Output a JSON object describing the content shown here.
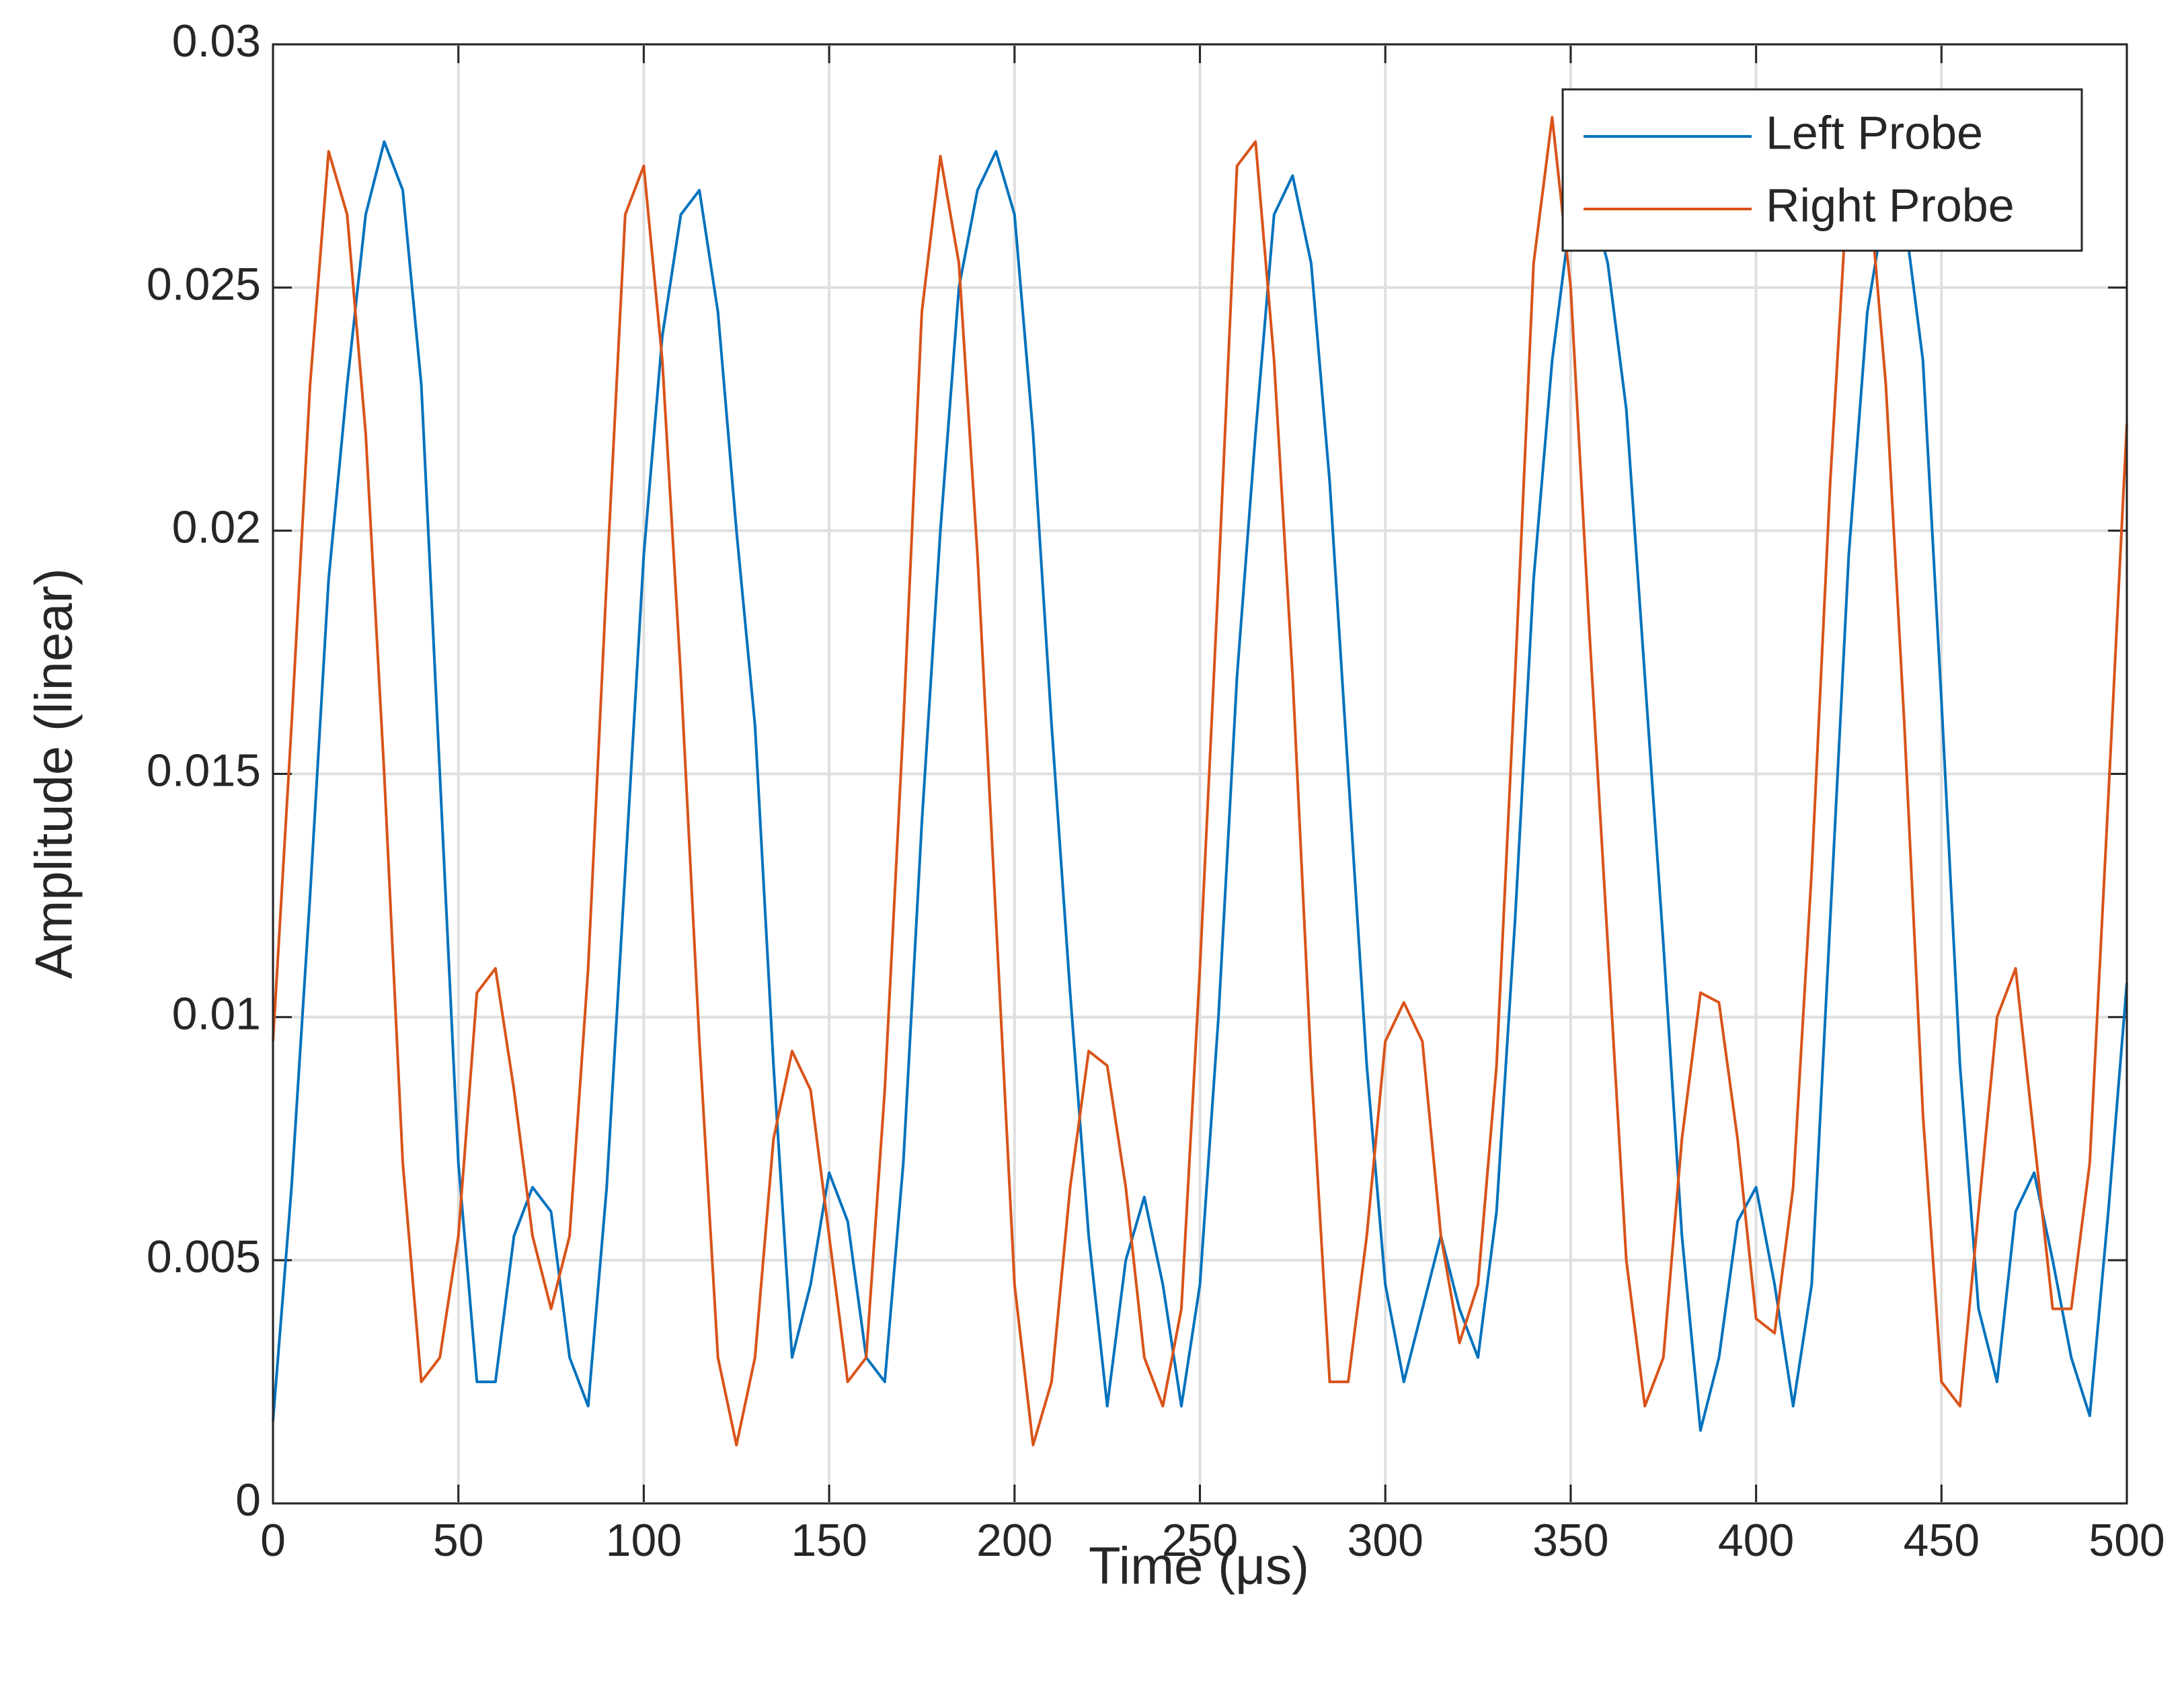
{
  "chart_data": {
    "type": "line",
    "xlabel": "Time (μs)",
    "ylabel": "Amplitude (linear)",
    "xlim": [
      0,
      500
    ],
    "ylim": [
      0,
      0.03
    ],
    "xticks": [
      0,
      50,
      100,
      150,
      200,
      250,
      300,
      350,
      400,
      450,
      500
    ],
    "yticks": [
      0,
      0.005,
      0.01,
      0.015,
      0.02,
      0.025,
      0.03
    ],
    "grid": true,
    "legend": "northeast",
    "x": [
      0,
      5,
      10,
      15,
      20,
      25,
      30,
      35,
      40,
      45,
      50,
      55,
      60,
      65,
      70,
      75,
      80,
      85,
      90,
      95,
      100,
      105,
      110,
      115,
      120,
      125,
      130,
      135,
      140,
      145,
      150,
      155,
      160,
      165,
      170,
      175,
      180,
      185,
      190,
      195,
      200,
      205,
      210,
      215,
      220,
      225,
      230,
      235,
      240,
      245,
      250,
      255,
      260,
      265,
      270,
      275,
      280,
      285,
      290,
      295,
      300,
      305,
      310,
      315,
      320,
      325,
      330,
      335,
      340,
      345,
      350,
      355,
      360,
      365,
      370,
      375,
      380,
      385,
      390,
      395,
      400,
      405,
      410,
      415,
      420,
      425,
      430,
      435,
      440,
      445,
      450,
      455,
      460,
      465,
      470,
      475,
      480,
      485,
      490,
      495,
      500
    ],
    "series": [
      {
        "name": "Left Probe",
        "color": "#0072bd",
        "values": [
          0.0017,
          0.0065,
          0.0125,
          0.019,
          0.023,
          0.0265,
          0.028,
          0.027,
          0.023,
          0.015,
          0.007,
          0.0025,
          0.0025,
          0.0055,
          0.0065,
          0.006,
          0.003,
          0.002,
          0.0065,
          0.013,
          0.0195,
          0.024,
          0.0265,
          0.027,
          0.0245,
          0.02,
          0.016,
          0.009,
          0.003,
          0.0045,
          0.0068,
          0.0058,
          0.003,
          0.0025,
          0.007,
          0.014,
          0.02,
          0.025,
          0.027,
          0.0278,
          0.0265,
          0.022,
          0.016,
          0.0105,
          0.0055,
          0.002,
          0.005,
          0.0063,
          0.0045,
          0.002,
          0.0045,
          0.01,
          0.017,
          0.022,
          0.0265,
          0.0273,
          0.0255,
          0.021,
          0.015,
          0.009,
          0.0045,
          0.0025,
          0.004,
          0.0055,
          0.004,
          0.003,
          0.006,
          0.012,
          0.019,
          0.0235,
          0.0265,
          0.027,
          0.0255,
          0.0225,
          0.017,
          0.0115,
          0.0055,
          0.0015,
          0.003,
          0.0058,
          0.0065,
          0.0045,
          0.002,
          0.0045,
          0.012,
          0.0195,
          0.0245,
          0.0268,
          0.0265,
          0.0235,
          0.0165,
          0.009,
          0.004,
          0.0025,
          0.006,
          0.0068,
          0.005,
          0.003,
          0.0018,
          0.006,
          0.0107
        ]
      },
      {
        "name": "Right Probe",
        "color": "#d95319",
        "values": [
          0.0095,
          0.016,
          0.023,
          0.0278,
          0.0265,
          0.022,
          0.015,
          0.007,
          0.0025,
          0.003,
          0.0055,
          0.0105,
          0.011,
          0.0085,
          0.0055,
          0.004,
          0.0055,
          0.011,
          0.019,
          0.0265,
          0.0275,
          0.0235,
          0.017,
          0.0095,
          0.003,
          0.0012,
          0.003,
          0.0075,
          0.0093,
          0.0085,
          0.0055,
          0.0025,
          0.003,
          0.0085,
          0.016,
          0.0245,
          0.0277,
          0.0255,
          0.0195,
          0.012,
          0.0045,
          0.0012,
          0.0025,
          0.0065,
          0.0093,
          0.009,
          0.0065,
          0.003,
          0.002,
          0.004,
          0.011,
          0.019,
          0.0275,
          0.028,
          0.0235,
          0.017,
          0.009,
          0.0025,
          0.0025,
          0.0055,
          0.0095,
          0.0103,
          0.0095,
          0.0055,
          0.0033,
          0.0045,
          0.009,
          0.017,
          0.0255,
          0.0285,
          0.025,
          0.018,
          0.0115,
          0.005,
          0.002,
          0.003,
          0.0075,
          0.0105,
          0.0103,
          0.0075,
          0.0038,
          0.0035,
          0.0065,
          0.013,
          0.021,
          0.0275,
          0.0275,
          0.023,
          0.016,
          0.008,
          0.0025,
          0.002,
          0.006,
          0.01,
          0.011,
          0.0075,
          0.004,
          0.004,
          0.007,
          0.0145,
          0.0222
        ]
      }
    ]
  }
}
